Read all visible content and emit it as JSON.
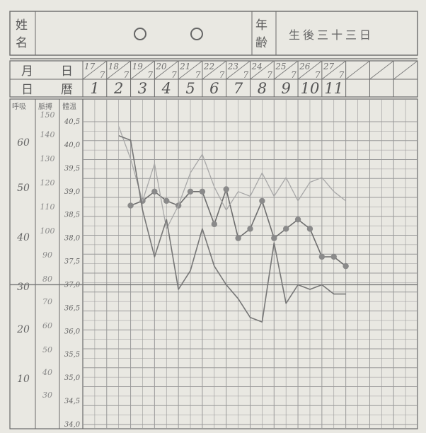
{
  "header": {
    "name_label": "姓名",
    "name_value": "○ ○",
    "age_label": "年齢",
    "age_value": "生後三十三日"
  },
  "rows": {
    "month_day_label": "月 日",
    "day_count_label": "日 暦"
  },
  "scale_headers": {
    "respiration": "呼吸",
    "pulse": "脈搏",
    "temperature": "體温"
  },
  "colors": {
    "paper": "#e9e8e2",
    "ink": "#555555",
    "grid": "#9a9a9a",
    "line_dark": "#6e6e6e",
    "line_light": "#a8a8a8"
  },
  "chart_data": {
    "type": "line",
    "dates": [
      "17/7",
      "18/7",
      "19/7",
      "20/7",
      "21/7",
      "22/7",
      "23/7",
      "24/7",
      "25/7",
      "26/7",
      "27/7"
    ],
    "day_numbers": [
      "1",
      "2",
      "3",
      "4",
      "5",
      "6",
      "7",
      "8",
      "9",
      "10",
      "11"
    ],
    "y_axes": {
      "respiration": {
        "ticks": [
          "60",
          "50",
          "40",
          "30",
          "20",
          "10"
        ],
        "values": [
          60,
          50,
          40,
          30,
          20,
          10
        ]
      },
      "pulse": {
        "ticks": [
          "150",
          "140",
          "130",
          "120",
          "110",
          "100",
          "90",
          "80",
          "70",
          "60",
          "50",
          "40",
          "30"
        ],
        "values": [
          150,
          140,
          130,
          120,
          110,
          100,
          90,
          80,
          70,
          60,
          50,
          40,
          30
        ]
      },
      "temperature": {
        "ticks": [
          "40,5",
          "40,0",
          "39,5",
          "39,0",
          "38,5",
          "38,0",
          "37,5",
          "37,0",
          "36,5",
          "36,0",
          "35,5",
          "35,0",
          "34,5",
          "34,0"
        ],
        "values": [
          40.5,
          40.0,
          39.5,
          39.0,
          38.5,
          38.0,
          37.5,
          37.0,
          36.5,
          36.0,
          35.5,
          35.0,
          34.5,
          34.0
        ],
        "min": 34.0,
        "max": 40.5
      }
    },
    "series": [
      {
        "style": "dotted-markers",
        "x": [
          2,
          2.5,
          3,
          3.5,
          4,
          4.5,
          5,
          5.5,
          6,
          6.5,
          7,
          7.5,
          8,
          8.5,
          9,
          9.5,
          10,
          10.5,
          11
        ],
        "y": [
          38.7,
          38.8,
          39.0,
          38.8,
          38.7,
          39.0,
          39.0,
          38.3,
          39.05,
          38.0,
          38.2,
          38.8,
          38.0,
          38.2,
          38.4,
          38.2,
          37.6,
          37.6,
          37.4
        ]
      },
      {
        "style": "thin-light",
        "x": [
          1.5,
          2,
          2.5,
          3,
          3.5,
          4,
          4.5,
          5,
          5.5,
          6,
          6.5,
          7,
          7.5,
          8,
          8.5,
          9,
          9.5,
          10,
          10.5,
          11
        ],
        "y": [
          40.4,
          39.7,
          38.8,
          39.6,
          38.2,
          38.7,
          39.4,
          39.8,
          39.1,
          38.6,
          39.0,
          38.9,
          39.4,
          38.9,
          39.3,
          38.8,
          39.2,
          39.3,
          39.0,
          38.8
        ]
      },
      {
        "style": "thin-dark",
        "x": [
          1.5,
          2,
          2.5,
          3,
          3.5,
          4,
          4.5,
          5,
          5.5,
          6,
          6.5,
          7,
          7.5,
          8,
          8.5,
          9,
          9.5,
          10,
          10.5,
          11
        ],
        "y": [
          40.2,
          40.1,
          38.6,
          37.6,
          38.4,
          36.9,
          37.3,
          38.2,
          37.4,
          37.0,
          36.7,
          36.3,
          36.2,
          37.9,
          36.6,
          37.0,
          36.9,
          37.0,
          36.8,
          36.8
        ]
      }
    ]
  }
}
